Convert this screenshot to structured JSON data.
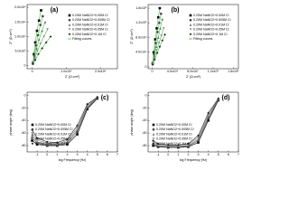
{
  "chart_data": [
    {
      "type": "scatter",
      "label": "(a)",
      "x_label": "Z' (Ω.cm²)",
      "y_label": "Z'' (Ω.cm²)",
      "xlim": [
        -1500,
        25000
      ],
      "xticks": [
        0,
        {
          "value": 10000,
          "label": "1.0x10⁴"
        },
        {
          "value": 20000,
          "label": "2.0x10⁴"
        }
      ],
      "ylim": [
        -1000,
        21000
      ],
      "yticks": [
        0,
        {
          "value": 5000,
          "label": "5.0x10³"
        },
        {
          "value": 10000,
          "label": "1.0x10⁴"
        },
        {
          "value": 15000,
          "label": "1.5x10⁴"
        },
        {
          "value": 20000,
          "label": "2.0x10⁴"
        }
      ],
      "legend": "upper-right",
      "fit_label": "Fitting curves",
      "fit_color": "#44bb44",
      "series": [
        {
          "name": "0.20M NaNO2+0.00M Cl",
          "color": "#000000",
          "marker": "square",
          "x": [
            200,
            500,
            900,
            1400,
            2000,
            2600
          ],
          "values": [
            1000,
            4000,
            8000,
            12000,
            15500,
            19000
          ]
        },
        {
          "name": "0.20M NaNO2+0.005M Cl",
          "color": "#444444",
          "marker": "circle",
          "x": [
            200,
            600,
            1100,
            1700,
            2400,
            3100
          ],
          "values": [
            900,
            3500,
            7000,
            10500,
            14000,
            17000
          ]
        },
        {
          "name": "0.20M NaNO2+0.01M Cl",
          "color": "#666666",
          "marker": "triangle",
          "x": [
            200,
            700,
            1300,
            2000,
            2900,
            3800
          ],
          "values": [
            800,
            3000,
            6000,
            9000,
            12000,
            15000
          ]
        },
        {
          "name": "0.20M NaNO2+0.05M Cl",
          "color": "#888888",
          "marker": "down",
          "x": [
            200,
            800,
            1500,
            2400,
            3400,
            4500
          ],
          "values": [
            700,
            2500,
            5000,
            7500,
            10000,
            12500
          ]
        },
        {
          "name": "0.20M NaNO2+0.1M Cl",
          "color": "#222222",
          "marker": "diamond",
          "x": [
            200,
            900,
            1800,
            2900,
            4100,
            5400
          ],
          "values": [
            600,
            2000,
            4000,
            6000,
            8000,
            10000
          ]
        }
      ]
    },
    {
      "type": "scatter",
      "label": "(b)",
      "x_label": "Z' (Ω.cm²)",
      "y_label": "Z'' (Ω.cm²)",
      "xlim": [
        -8000,
        170000
      ],
      "xticks": [
        0,
        {
          "value": 40000,
          "label": "4.0x10⁴"
        },
        {
          "value": 80000,
          "label": "8.0x10⁴"
        },
        {
          "value": 120000,
          "label": "1.2x10⁵"
        },
        {
          "value": 160000,
          "label": "1.6x10⁵"
        }
      ],
      "ylim": [
        -5000,
        170000
      ],
      "yticks": [
        0,
        {
          "value": 40000,
          "label": "4.0x10⁴"
        },
        {
          "value": 80000,
          "label": "8.0x10⁴"
        },
        {
          "value": 120000,
          "label": "1.2x10⁵"
        },
        {
          "value": 160000,
          "label": "1.6x10⁵"
        }
      ],
      "legend": "upper-right",
      "fit_label": "Fitting curves",
      "fit_color": "#44bb44",
      "series": [
        {
          "name": "0.20M NaNO2+0.00M Cl",
          "color": "#000000",
          "marker": "square",
          "x": [
            1000,
            3000,
            6000,
            9000,
            12000,
            15000
          ],
          "values": [
            10000,
            40000,
            75000,
            105000,
            135000,
            160000
          ]
        },
        {
          "name": "0.20M NaNO2+0.005M Cl",
          "color": "#444444",
          "marker": "circle",
          "x": [
            1000,
            3500,
            7000,
            10500,
            14000,
            17500
          ],
          "values": [
            9000,
            35000,
            65000,
            95000,
            120000,
            145000
          ]
        },
        {
          "name": "0.20M NaNO2+0.01M Cl",
          "color": "#666666",
          "marker": "triangle",
          "x": [
            1000,
            4000,
            8000,
            12000,
            16000,
            20000
          ],
          "values": [
            8000,
            30000,
            55000,
            80000,
            105000,
            130000
          ]
        },
        {
          "name": "0.20M NaNO2+0.05M Cl",
          "color": "#888888",
          "marker": "down",
          "x": [
            1000,
            4500,
            9000,
            13500,
            18000,
            22500
          ],
          "values": [
            7000,
            25000,
            45000,
            65000,
            85000,
            105000
          ]
        },
        {
          "name": "0.20M NaNO2+0.1M Cl",
          "color": "#222222",
          "marker": "diamond",
          "x": [
            1000,
            5000,
            10000,
            15000,
            20000,
            25000
          ],
          "values": [
            6000,
            20000,
            38000,
            55000,
            72000,
            88000
          ]
        }
      ]
    },
    {
      "type": "line",
      "label": "(c)",
      "x_label": "log Frequency (Hz)",
      "y_label": "phase angle (deg)",
      "xlim": [
        -2,
        7
      ],
      "xticks": [
        -1,
        0,
        1,
        2,
        3,
        4,
        5,
        6,
        7
      ],
      "ylim": [
        -90,
        5
      ],
      "yticks": [
        0,
        -20,
        -40,
        -60,
        -80
      ],
      "legend": "lower-left",
      "series": [
        {
          "name": "0.20M NaNO2+0.00M Cl",
          "color": "#000000",
          "marker": "square",
          "x": [
            -1.5,
            -1,
            0,
            1,
            2,
            3,
            4,
            5
          ],
          "values": [
            -72,
            -78,
            -80,
            -80,
            -78,
            -62,
            -22,
            -5
          ]
        },
        {
          "name": "0.20M NaNO2+0.005M Cl",
          "color": "#444444",
          "marker": "circle",
          "x": [
            -1.5,
            -1,
            0,
            1,
            2,
            3,
            4,
            5
          ],
          "values": [
            -68,
            -76,
            -79,
            -79,
            -76,
            -58,
            -20,
            -4
          ]
        },
        {
          "name": "0.20M NaNO2+0.01M Cl",
          "color": "#666666",
          "marker": "triangle",
          "x": [
            -1.5,
            -1,
            0,
            1,
            2,
            3,
            4,
            5
          ],
          "values": [
            -64,
            -74,
            -78,
            -78,
            -74,
            -55,
            -18,
            -4
          ]
        },
        {
          "name": "0.20M NaNO2+0.05M Cl",
          "color": "#888888",
          "marker": "down",
          "x": [
            -1.5,
            -1,
            0,
            1,
            2,
            3,
            4,
            5
          ],
          "values": [
            -60,
            -71,
            -76,
            -77,
            -72,
            -52,
            -16,
            -3
          ]
        },
        {
          "name": "0.20M NaNO2+0.1M Cl",
          "color": "#222222",
          "marker": "diamond",
          "x": [
            -1.5,
            -1,
            0,
            1,
            2,
            3,
            4,
            5
          ],
          "values": [
            -55,
            -68,
            -74,
            -75,
            -70,
            -48,
            -14,
            -3
          ]
        }
      ]
    },
    {
      "type": "line",
      "label": "(d)",
      "x_label": "log Frequency (Hz)",
      "y_label": "phase angle (deg)",
      "xlim": [
        -2,
        7
      ],
      "xticks": [
        -1,
        0,
        1,
        2,
        3,
        4,
        5,
        6,
        7
      ],
      "ylim": [
        -90,
        5
      ],
      "yticks": [
        0,
        -20,
        -40,
        -60,
        -80
      ],
      "legend": "lower-left",
      "series": [
        {
          "name": "0.20M NaNO2+0.00M Cl",
          "color": "#000000",
          "marker": "square",
          "x": [
            -1.5,
            -1,
            0,
            1,
            2,
            3,
            4,
            5
          ],
          "values": [
            -80,
            -82,
            -83,
            -83,
            -82,
            -75,
            -40,
            -8
          ]
        },
        {
          "name": "0.20M NaNO2+0.005M Cl",
          "color": "#444444",
          "marker": "circle",
          "x": [
            -1.5,
            -1,
            0,
            1,
            2,
            3,
            4,
            5
          ],
          "values": [
            -78,
            -81,
            -82,
            -82,
            -81,
            -72,
            -37,
            -7
          ]
        },
        {
          "name": "0.20M NaNO2+0.01M Cl",
          "color": "#666666",
          "marker": "triangle",
          "x": [
            -1.5,
            -1,
            0,
            1,
            2,
            3,
            4,
            5
          ],
          "values": [
            -76,
            -80,
            -81,
            -81,
            -80,
            -70,
            -34,
            -6
          ]
        },
        {
          "name": "0.20M NaNO2+0.05M Cl",
          "color": "#888888",
          "marker": "down",
          "x": [
            -1.5,
            -1,
            0,
            1,
            2,
            3,
            4,
            5
          ],
          "values": [
            -74,
            -78,
            -80,
            -80,
            -78,
            -67,
            -31,
            -6
          ]
        },
        {
          "name": "0.20M NaNO2+0.1M Cl",
          "color": "#222222",
          "marker": "diamond",
          "x": [
            -1.5,
            -1,
            0,
            1,
            2,
            3,
            4,
            5
          ],
          "values": [
            -72,
            -77,
            -79,
            -79,
            -77,
            -64,
            -28,
            -5
          ]
        }
      ]
    }
  ]
}
